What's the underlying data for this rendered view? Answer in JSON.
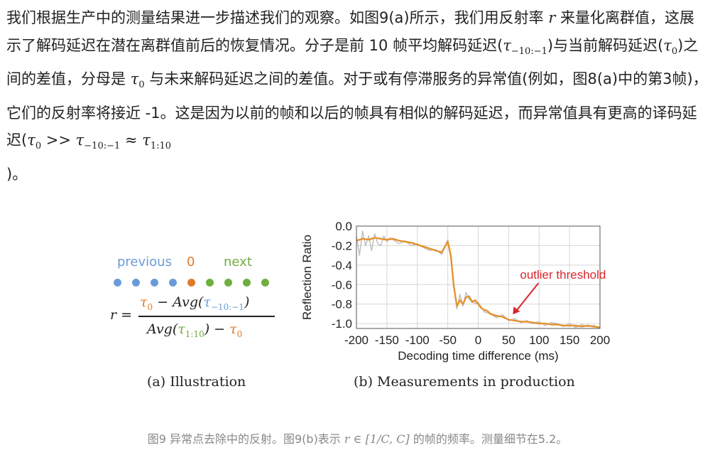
{
  "paragraph": {
    "s1": "我们根据生产中的测量结果进一步描述我们的观察。如图9(a)所示，我们用反射率",
    "r": "r",
    "s2": "来量化离群值，这展示了解码延迟在潜在离群值前后的恢复情况。分子是前 10 帧平均解码延迟(",
    "tau_prev": "τ",
    "tau_prev_sub": "−10:−1",
    "s3": ")与当前解码延迟(",
    "tau0a": "τ",
    "tau0a_sub": "0",
    "s4": ")之间的差值，分母是",
    "tau0b": "τ",
    "tau0b_sub": "0",
    "s5": "与未来解码延迟之间的差值。对于或有停滞服务的异常值(例如，图8(a)中的第3帧)，它们的反射率将接近 -1。这是因为以前的帧和以后的帧具有相似的解码延迟，而异常值具有更高的译码延迟(",
    "ineq": "τ",
    "ineq_sub0": "0",
    "ineq_gg": " >> τ",
    "ineq_sub1": "−10:−1",
    "ineq_approx": " ≈ τ",
    "ineq_sub2": "1:10",
    "s6": ")。"
  },
  "illustration": {
    "previous_label": "previous",
    "zero_label": "0",
    "next_label": "next",
    "r_eq": "r =",
    "num_tau0": "τ",
    "num_tau0_sub": "0",
    "num_minus_avg": " − Avg(",
    "num_tau": "τ",
    "num_tau_sub": "−10:−1",
    "num_close": ")",
    "den_avg": "Avg(",
    "den_tau": "τ",
    "den_tau_sub": "1:10",
    "den_minus": ") − ",
    "den_tau0": "τ",
    "den_tau0_sub": "0",
    "caption": "(a) Illustration",
    "colors": {
      "previous": "#6a9bd8",
      "current": "#e07b2a",
      "next": "#6fae3f"
    }
  },
  "chart_data": {
    "type": "line",
    "title": "",
    "xlabel": "Decoding time difference (ms)",
    "ylabel": "Reflection Ratio",
    "xlim": [
      -200,
      200
    ],
    "ylim": [
      -1.05,
      0.0
    ],
    "xticks": [
      -200,
      -150,
      -100,
      -50,
      0,
      50,
      100,
      150,
      200
    ],
    "yticks": [
      0.0,
      -0.2,
      -0.4,
      -0.6,
      -0.8,
      -1.0
    ],
    "xtick_labels": [
      "-200",
      "-150",
      "-100",
      "-50",
      "0",
      "50",
      "100",
      "150",
      "200"
    ],
    "ytick_labels": [
      "0.0",
      "-0.2",
      "-0.4",
      "-0.6",
      "-0.8",
      "-1.0"
    ],
    "grid": true,
    "annotation": {
      "text": "outlier threshold",
      "x": 50,
      "y": -0.92,
      "color": "#d9262b"
    },
    "caption": "(b) Measurements in production",
    "series": [
      {
        "color": "#e6922e",
        "x": [
          -200,
          -190,
          -180,
          -170,
          -160,
          -150,
          -140,
          -130,
          -120,
          -110,
          -100,
          -90,
          -80,
          -70,
          -60,
          -50,
          -45,
          -40,
          -35,
          -30,
          -25,
          -20,
          -15,
          -10,
          -5,
          0,
          5,
          10,
          15,
          20,
          30,
          40,
          50,
          60,
          70,
          80,
          90,
          100,
          110,
          120,
          130,
          140,
          150,
          160,
          170,
          180,
          190,
          200
        ],
        "y": [
          -0.15,
          -0.13,
          -0.14,
          -0.12,
          -0.13,
          -0.14,
          -0.13,
          -0.15,
          -0.16,
          -0.17,
          -0.19,
          -0.21,
          -0.23,
          -0.25,
          -0.27,
          -0.16,
          -0.3,
          -0.62,
          -0.82,
          -0.76,
          -0.8,
          -0.73,
          -0.72,
          -0.78,
          -0.76,
          -0.8,
          -0.84,
          -0.86,
          -0.87,
          -0.9,
          -0.92,
          -0.93,
          -0.96,
          -0.97,
          -0.98,
          -0.98,
          -0.99,
          -1.0,
          -1.0,
          -1.01,
          -1.01,
          -1.02,
          -1.02,
          -1.02,
          -1.03,
          -1.02,
          -1.03,
          -1.04
        ]
      },
      {
        "color": "#bdbdbd",
        "x": [
          -200,
          -195,
          -190,
          -185,
          -180,
          -175,
          -170,
          -165,
          -160,
          -155,
          -150,
          -145,
          -140,
          -130,
          -120,
          -110,
          -100,
          -90,
          -80,
          -70,
          -60,
          -50,
          -45,
          -40,
          -35,
          -30,
          -25,
          -20,
          -15,
          -10,
          -5,
          0,
          10,
          20,
          30,
          40,
          50,
          60,
          70,
          80,
          90,
          100,
          110,
          120,
          130,
          140,
          150,
          160,
          170,
          180,
          190,
          200
        ],
        "y": [
          -0.1,
          -0.3,
          -0.05,
          -0.2,
          -0.1,
          -0.25,
          -0.08,
          -0.18,
          -0.2,
          -0.1,
          -0.16,
          -0.12,
          -0.14,
          -0.18,
          -0.15,
          -0.2,
          -0.18,
          -0.22,
          -0.25,
          -0.24,
          -0.29,
          -0.14,
          -0.32,
          -0.6,
          -0.85,
          -0.7,
          -0.82,
          -0.68,
          -0.75,
          -0.76,
          -0.8,
          -0.78,
          -0.88,
          -0.9,
          -0.94,
          -0.91,
          -0.97,
          -0.95,
          -0.99,
          -0.97,
          -1.0,
          -0.98,
          -1.02,
          -0.99,
          -1.0,
          -1.03,
          -1.0,
          -1.04,
          -1.01,
          -1.03,
          -1.02,
          -1.05
        ]
      }
    ]
  },
  "figure_caption": {
    "s1": "图9 异常点去除中的反射。图9(b)表示",
    "math": "r ∈ [1/C, C]",
    "s2": "的帧的频率。测量细节在5.2。"
  }
}
